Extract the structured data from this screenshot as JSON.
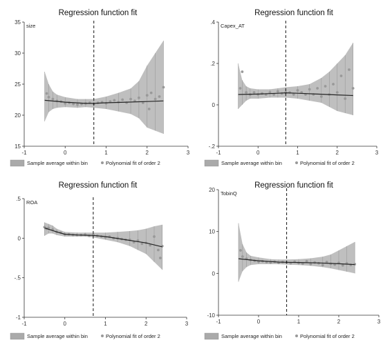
{
  "chart_data": [
    {
      "type": "scatter",
      "title": "Regression function fit",
      "ylabel": "size",
      "x_ticks": [
        "-1",
        "0",
        "1",
        "2",
        "3"
      ],
      "y_ticks": [
        "15",
        "20",
        "25",
        "30",
        "35"
      ],
      "xlim": [
        -1,
        3
      ],
      "ylim": [
        15,
        35
      ],
      "cutoff": 0.7,
      "legend": [
        "Sample average within bin",
        "Polynomial fit of order 2"
      ],
      "colors": {
        "band": "#aaaaaa",
        "points": "#999999",
        "fit": "#222222"
      },
      "fit": {
        "x": [
          -0.5,
          0.0,
          0.5,
          0.7,
          1.0,
          1.5,
          2.0,
          2.4
        ],
        "y": [
          22.4,
          22.1,
          21.9,
          21.9,
          22.0,
          22.1,
          22.2,
          22.3
        ]
      },
      "points": {
        "x": [
          -0.45,
          -0.4,
          -0.3,
          -0.2,
          -0.1,
          0.0,
          0.1,
          0.2,
          0.3,
          0.4,
          0.5,
          0.6,
          0.7,
          0.8,
          0.9,
          1.0,
          1.1,
          1.2,
          1.3,
          1.4,
          1.5,
          1.6,
          1.7,
          1.8,
          1.9,
          2.0,
          2.05,
          2.1,
          2.2,
          2.3,
          2.4
        ],
        "y": [
          23.5,
          22.9,
          22.6,
          22.3,
          22.2,
          21.9,
          22.0,
          21.8,
          21.7,
          21.8,
          21.9,
          22.0,
          21.8,
          22.0,
          22.1,
          21.9,
          22.2,
          22.4,
          22.1,
          22.5,
          22.0,
          22.6,
          22.3,
          22.8,
          22.0,
          23.2,
          21.0,
          23.6,
          22.6,
          23.0,
          24.5
        ]
      },
      "band": {
        "x": [
          -0.5,
          -0.4,
          -0.3,
          -0.2,
          0.0,
          0.3,
          0.5,
          0.7,
          1.0,
          1.3,
          1.6,
          1.8,
          2.0,
          2.2,
          2.4
        ],
        "low": [
          19.0,
          20.5,
          21.0,
          21.2,
          21.3,
          21.2,
          21.3,
          21.2,
          21.0,
          20.6,
          20.2,
          19.5,
          18.0,
          17.5,
          17.0
        ],
        "high": [
          27.0,
          25.0,
          23.8,
          23.3,
          22.9,
          22.6,
          22.6,
          22.6,
          23.0,
          23.6,
          24.3,
          25.5,
          28.0,
          30.0,
          32.0
        ]
      }
    },
    {
      "type": "scatter",
      "title": "Regression function fit",
      "ylabel": "Capex_AT",
      "x_ticks": [
        "-1",
        "0",
        "1",
        "2",
        "3"
      ],
      "y_ticks": [
        "-.2",
        "0",
        ".2",
        ".4"
      ],
      "xlim": [
        -1,
        3
      ],
      "ylim": [
        -0.2,
        0.4
      ],
      "cutoff": 0.7,
      "legend": [
        "Sample average within bin",
        "Polynomial fit of order 2"
      ],
      "colors": {
        "band": "#aaaaaa",
        "points": "#999999",
        "fit": "#222222"
      },
      "fit": {
        "x": [
          -0.5,
          0.0,
          0.5,
          0.7,
          1.0,
          1.5,
          2.0,
          2.4
        ],
        "y": [
          0.05,
          0.052,
          0.056,
          0.058,
          0.056,
          0.052,
          0.048,
          0.045
        ]
      },
      "points": {
        "x": [
          -0.45,
          -0.4,
          -0.3,
          -0.2,
          -0.1,
          0.0,
          0.1,
          0.2,
          0.3,
          0.4,
          0.5,
          0.6,
          0.7,
          0.8,
          0.9,
          1.0,
          1.1,
          1.2,
          1.3,
          1.4,
          1.5,
          1.6,
          1.7,
          1.8,
          1.9,
          2.0,
          2.1,
          2.2,
          2.3,
          2.4
        ],
        "y": [
          0.08,
          0.16,
          0.06,
          0.05,
          0.06,
          0.05,
          0.055,
          0.05,
          0.06,
          0.05,
          0.065,
          0.055,
          0.06,
          0.06,
          0.05,
          0.07,
          0.06,
          0.05,
          0.075,
          0.05,
          0.08,
          0.04,
          0.09,
          0.05,
          0.1,
          0.06,
          0.14,
          0.03,
          0.17,
          0.08
        ]
      },
      "band": {
        "x": [
          -0.5,
          -0.4,
          -0.3,
          -0.2,
          0.0,
          0.3,
          0.5,
          0.7,
          1.0,
          1.3,
          1.6,
          1.8,
          2.0,
          2.2,
          2.4
        ],
        "low": [
          -0.02,
          0.0,
          0.02,
          0.03,
          0.03,
          0.035,
          0.035,
          0.035,
          0.03,
          0.02,
          0.01,
          -0.01,
          -0.03,
          -0.04,
          -0.05
        ],
        "high": [
          0.2,
          0.12,
          0.09,
          0.08,
          0.075,
          0.075,
          0.08,
          0.085,
          0.09,
          0.1,
          0.13,
          0.16,
          0.2,
          0.24,
          0.3
        ]
      }
    },
    {
      "type": "scatter",
      "title": "Regression function fit",
      "ylabel": "ROA",
      "x_ticks": [
        "-1",
        "0",
        "1",
        "2",
        "3"
      ],
      "y_ticks": [
        "-1",
        "-.5",
        "0",
        ".5"
      ],
      "xlim": [
        -1,
        3
      ],
      "ylim": [
        -1,
        0.5
      ],
      "cutoff": 0.7,
      "legend": [
        "Sample average within bin",
        "Polynomial fit of order 2"
      ],
      "colors": {
        "band": "#aaaaaa",
        "points": "#999999",
        "fit": "#222222"
      },
      "fit": {
        "x": [
          -0.5,
          -0.2,
          0.0,
          0.3,
          0.7,
          1.0,
          1.5,
          2.0,
          2.4
        ],
        "y": [
          0.13,
          0.08,
          0.05,
          0.04,
          0.035,
          0.02,
          -0.02,
          -0.06,
          -0.11
        ]
      },
      "points": {
        "x": [
          -0.5,
          -0.45,
          -0.4,
          -0.3,
          -0.2,
          -0.1,
          0.0,
          0.1,
          0.2,
          0.3,
          0.4,
          0.5,
          0.6,
          0.7,
          0.8,
          0.9,
          1.0,
          1.1,
          1.2,
          1.3,
          1.4,
          1.5,
          1.6,
          1.7,
          1.8,
          1.9,
          2.0,
          2.1,
          2.2,
          2.3,
          2.35,
          2.4
        ],
        "y": [
          0.14,
          0.12,
          0.13,
          0.11,
          0.08,
          0.07,
          0.05,
          0.05,
          0.04,
          0.04,
          0.04,
          0.045,
          0.03,
          0.04,
          0.03,
          0.02,
          0.01,
          0.02,
          0.0,
          0.0,
          -0.01,
          -0.02,
          -0.02,
          -0.05,
          -0.03,
          -0.07,
          -0.06,
          -0.09,
          0.02,
          -0.15,
          -0.25,
          -0.1
        ]
      },
      "band": {
        "x": [
          -0.5,
          -0.4,
          -0.3,
          -0.2,
          0.0,
          0.3,
          0.5,
          0.7,
          1.0,
          1.3,
          1.6,
          1.8,
          2.0,
          2.2,
          2.4
        ],
        "low": [
          0.03,
          0.06,
          0.06,
          0.04,
          0.02,
          0.02,
          0.02,
          0.01,
          -0.02,
          -0.05,
          -0.1,
          -0.15,
          -0.2,
          -0.3,
          -0.4
        ],
        "high": [
          0.2,
          0.18,
          0.16,
          0.12,
          0.08,
          0.07,
          0.07,
          0.07,
          0.07,
          0.08,
          0.09,
          0.1,
          0.12,
          0.15,
          0.17
        ]
      }
    },
    {
      "type": "scatter",
      "title": "Regression function fit",
      "ylabel": "TobinQ",
      "x_ticks": [
        "-1",
        "0",
        "1",
        "2",
        "3"
      ],
      "y_ticks": [
        "-10",
        "0",
        "10",
        "20"
      ],
      "xlim": [
        -1,
        3
      ],
      "ylim": [
        -10,
        20
      ],
      "cutoff": 0.7,
      "legend": [
        "Sample average within bin",
        "Polynomial fit of order 2"
      ],
      "colors": {
        "band": "#aaaaaa",
        "points": "#999999",
        "fit": "#222222"
      },
      "fit": {
        "x": [
          -0.5,
          0.0,
          0.5,
          0.7,
          1.0,
          1.5,
          2.0,
          2.4
        ],
        "y": [
          3.5,
          3.0,
          2.7,
          2.65,
          2.6,
          2.5,
          2.3,
          2.1
        ]
      },
      "points": {
        "x": [
          -0.45,
          -0.4,
          -0.3,
          -0.2,
          -0.1,
          0.0,
          0.1,
          0.2,
          0.3,
          0.4,
          0.5,
          0.6,
          0.7,
          0.8,
          0.9,
          1.0,
          1.1,
          1.2,
          1.3,
          1.4,
          1.5,
          1.6,
          1.7,
          1.8,
          1.9,
          2.0,
          2.1,
          2.2,
          2.3,
          2.4
        ],
        "y": [
          5.5,
          4.0,
          3.5,
          3.2,
          3.0,
          2.8,
          2.9,
          2.7,
          2.6,
          2.8,
          2.5,
          2.7,
          2.6,
          2.4,
          2.8,
          2.5,
          2.3,
          2.9,
          2.2,
          2.6,
          2.4,
          2.0,
          2.7,
          2.3,
          2.1,
          2.5,
          1.9,
          2.4,
          2.0,
          2.2
        ]
      },
      "band": {
        "x": [
          -0.5,
          -0.4,
          -0.3,
          -0.2,
          0.0,
          0.3,
          0.5,
          0.7,
          1.0,
          1.3,
          1.6,
          1.8,
          2.0,
          2.2,
          2.4
        ],
        "low": [
          -2.0,
          0.5,
          1.5,
          2.0,
          2.2,
          2.2,
          2.2,
          2.1,
          2.0,
          1.8,
          1.5,
          1.2,
          0.8,
          0.4,
          0.0
        ],
        "high": [
          12.0,
          7.0,
          5.0,
          4.2,
          3.8,
          3.4,
          3.3,
          3.3,
          3.4,
          3.6,
          4.0,
          4.5,
          5.5,
          6.5,
          7.5
        ]
      }
    }
  ]
}
